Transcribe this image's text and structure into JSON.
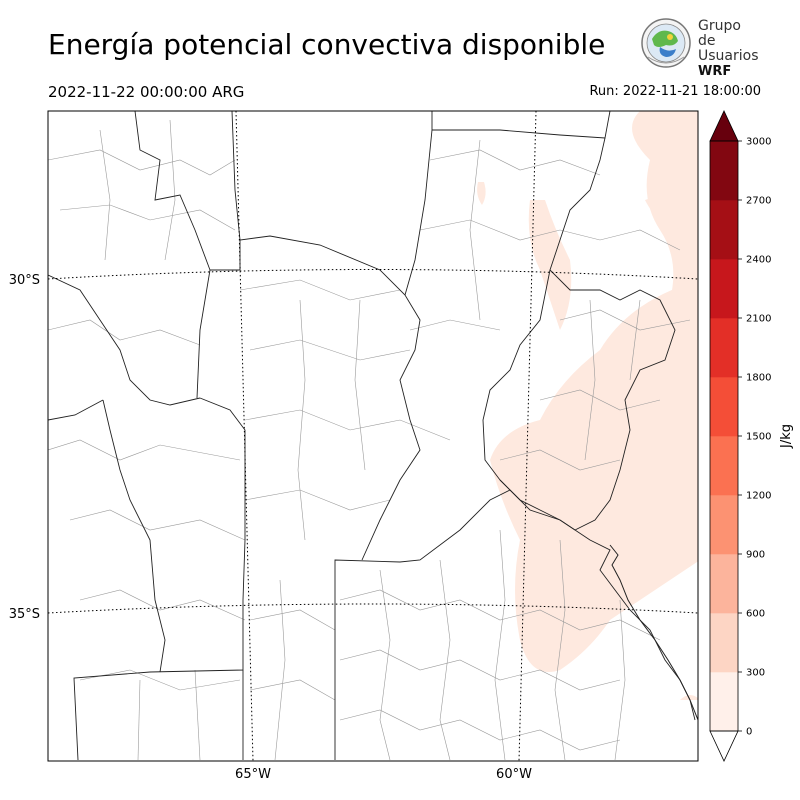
{
  "header": {
    "title": "Energía potencial convectiva disponible",
    "valid_time": "2022-11-22 00:00:00 ARG",
    "run_time": "Run: 2022-11-21 18:00:00"
  },
  "logo": {
    "line1": "Grupo de",
    "line2": "Usuarios",
    "line3": "WRF"
  },
  "map": {
    "lat_labels": [
      "30°S",
      "35°S"
    ],
    "lon_labels": [
      "65°W",
      "60°W"
    ],
    "cape_fill_color": "#fee9df"
  },
  "colorbar": {
    "unit": "J/kg",
    "levels": [
      "0",
      "300",
      "600",
      "900",
      "1200",
      "1500",
      "1800",
      "2100",
      "2400",
      "2700",
      "3000"
    ],
    "colors": [
      "#fff0ea",
      "#fdd5c4",
      "#fcb49c",
      "#fc9272",
      "#fb7151",
      "#f44e37",
      "#e32f27",
      "#c7171c",
      "#a50f15",
      "#820711"
    ],
    "over_color": "#67000d",
    "under_color": "#ffffff"
  }
}
